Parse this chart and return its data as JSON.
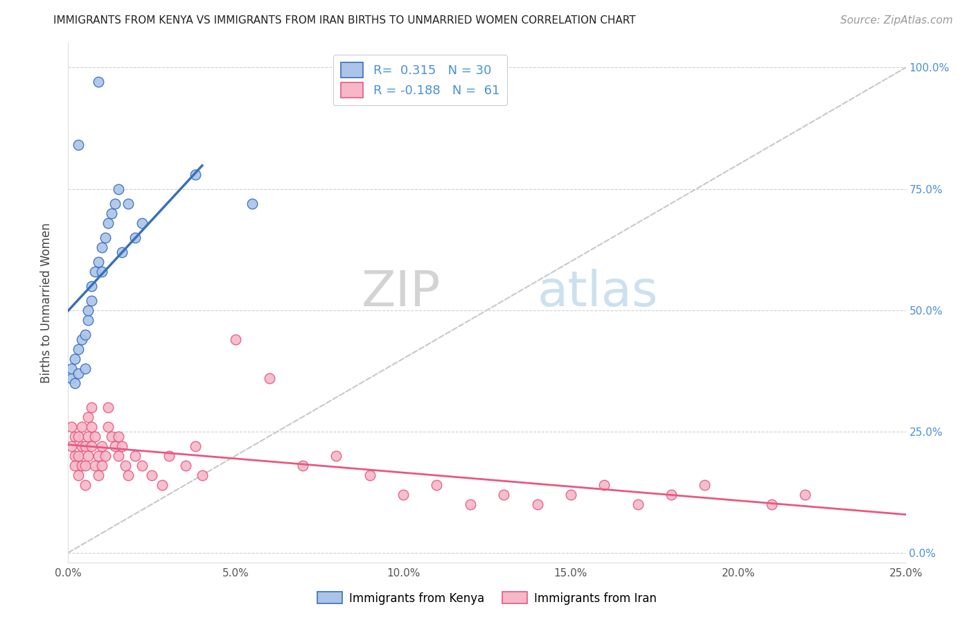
{
  "title": "IMMIGRANTS FROM KENYA VS IMMIGRANTS FROM IRAN BIRTHS TO UNMARRIED WOMEN CORRELATION CHART",
  "source": "Source: ZipAtlas.com",
  "ylabel": "Births to Unmarried Women",
  "xlim": [
    0.0,
    0.25
  ],
  "ylim": [
    -0.02,
    1.05
  ],
  "x_ticks": [
    0.0,
    0.05,
    0.1,
    0.15,
    0.2,
    0.25
  ],
  "x_tick_labels": [
    "0.0%",
    "5.0%",
    "10.0%",
    "15.0%",
    "20.0%",
    "25.0%"
  ],
  "y_ticks": [
    0.0,
    0.25,
    0.5,
    0.75,
    1.0
  ],
  "y_tick_labels": [
    "0.0%",
    "25.0%",
    "50.0%",
    "75.0%",
    "100.0%"
  ],
  "kenya_color": "#aac4e8",
  "iran_color": "#f4b8c8",
  "kenya_line_color": "#3a6fba",
  "iran_line_color": "#e85880",
  "diagonal_color": "#c8c8c8",
  "R_kenya": 0.315,
  "N_kenya": 30,
  "R_iran": -0.188,
  "N_iran": 61,
  "legend_label_kenya": "Immigrants from Kenya",
  "legend_label_iran": "Immigrants from Iran",
  "kenya_x": [
    0.001,
    0.001,
    0.002,
    0.002,
    0.003,
    0.003,
    0.004,
    0.005,
    0.005,
    0.006,
    0.006,
    0.007,
    0.007,
    0.008,
    0.009,
    0.01,
    0.01,
    0.011,
    0.012,
    0.013,
    0.014,
    0.015,
    0.016,
    0.018,
    0.02,
    0.022,
    0.038,
    0.055,
    0.009,
    0.003
  ],
  "kenya_y": [
    0.36,
    0.38,
    0.35,
    0.4,
    0.37,
    0.42,
    0.44,
    0.45,
    0.38,
    0.48,
    0.5,
    0.52,
    0.55,
    0.58,
    0.6,
    0.63,
    0.58,
    0.65,
    0.68,
    0.7,
    0.72,
    0.75,
    0.62,
    0.72,
    0.65,
    0.68,
    0.78,
    0.72,
    0.97,
    0.84
  ],
  "iran_x": [
    0.001,
    0.001,
    0.002,
    0.002,
    0.002,
    0.003,
    0.003,
    0.003,
    0.004,
    0.004,
    0.004,
    0.005,
    0.005,
    0.005,
    0.006,
    0.006,
    0.006,
    0.007,
    0.007,
    0.007,
    0.008,
    0.008,
    0.009,
    0.009,
    0.01,
    0.01,
    0.011,
    0.012,
    0.012,
    0.013,
    0.014,
    0.015,
    0.015,
    0.016,
    0.017,
    0.018,
    0.02,
    0.022,
    0.025,
    0.028,
    0.03,
    0.035,
    0.038,
    0.04,
    0.05,
    0.06,
    0.07,
    0.08,
    0.09,
    0.1,
    0.11,
    0.12,
    0.13,
    0.14,
    0.15,
    0.16,
    0.17,
    0.18,
    0.19,
    0.21,
    0.22
  ],
  "iran_y": [
    0.22,
    0.26,
    0.18,
    0.2,
    0.24,
    0.16,
    0.2,
    0.24,
    0.18,
    0.22,
    0.26,
    0.14,
    0.18,
    0.22,
    0.2,
    0.24,
    0.28,
    0.22,
    0.26,
    0.3,
    0.18,
    0.24,
    0.16,
    0.2,
    0.18,
    0.22,
    0.2,
    0.26,
    0.3,
    0.24,
    0.22,
    0.2,
    0.24,
    0.22,
    0.18,
    0.16,
    0.2,
    0.18,
    0.16,
    0.14,
    0.2,
    0.18,
    0.22,
    0.16,
    0.44,
    0.36,
    0.18,
    0.2,
    0.16,
    0.12,
    0.14,
    0.1,
    0.12,
    0.1,
    0.12,
    0.14,
    0.1,
    0.12,
    0.14,
    0.1,
    0.12
  ],
  "watermark_zip": "ZIP",
  "watermark_atlas": "atlas",
  "background_color": "#ffffff",
  "grid_color": "#d0d0d0",
  "title_fontsize": 11,
  "source_fontsize": 11,
  "tick_fontsize": 11,
  "legend_fontsize": 13
}
